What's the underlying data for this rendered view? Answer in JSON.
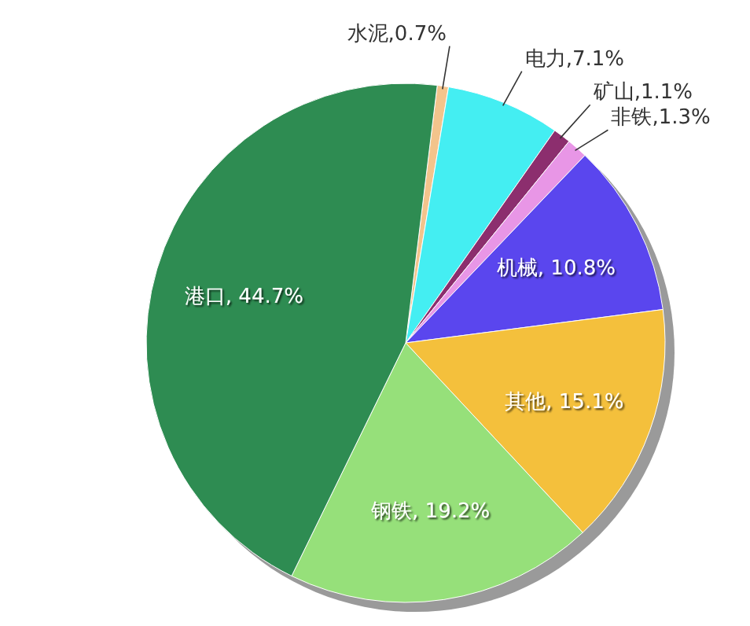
{
  "chart_data": {
    "type": "pie",
    "categories": [
      "水泥",
      "电力",
      "矿山",
      "非铁",
      "机械",
      "其他",
      "钢铁",
      "港口"
    ],
    "values": [
      0.7,
      7.1,
      1.1,
      1.3,
      10.8,
      15.1,
      19.2,
      44.7
    ],
    "value_labels": [
      ",0.7%",
      ",7.1%",
      ",1.1%",
      ",1.3%",
      ", 10.8%",
      ", 15.1%",
      ", 19.2%",
      ", 44.7%"
    ],
    "colors": [
      "#f3c48c",
      "#44eef2",
      "#8c2e6e",
      "#e896e6",
      "#5a46ee",
      "#f4c03c",
      "#96e07a",
      "#2e8c52"
    ]
  }
}
